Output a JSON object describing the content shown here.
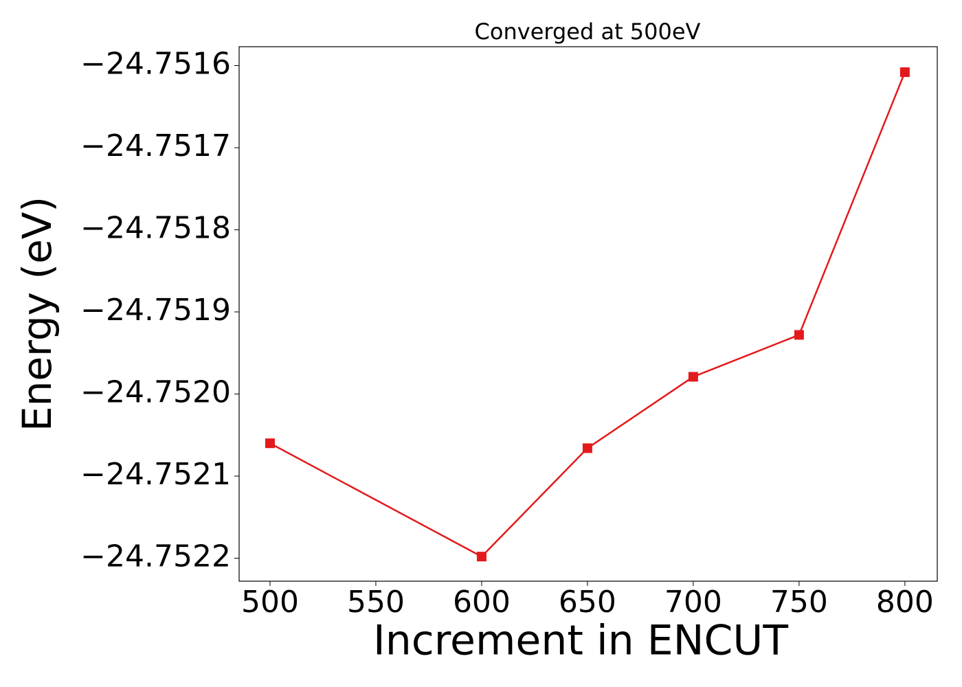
{
  "chart_data": {
    "type": "line",
    "title": "Converged at 500eV",
    "x_label": "Increment in ENCUT",
    "y_label": "Energy (eV)",
    "x": [
      500,
      600,
      650,
      700,
      750,
      800
    ],
    "series": [
      {
        "color": "#e31a1c",
        "values": [
          -24.75206,
          -24.752198,
          -24.752066,
          -24.751979,
          -24.751928,
          -24.751608
        ]
      }
    ],
    "xlim": [
      485.4,
      815.3
    ],
    "xticks": [
      500,
      550,
      600,
      650,
      700,
      750,
      800
    ],
    "ylim": [
      -24.752228,
      -24.751577
    ],
    "yticks": [
      {
        "value": -24.7522,
        "label": "−24.7522"
      },
      {
        "value": -24.7521,
        "label": "−24.7521"
      },
      {
        "value": -24.752,
        "label": "−24.7520"
      },
      {
        "value": -24.7519,
        "label": "−24.7519"
      },
      {
        "value": -24.7518,
        "label": "−24.7518"
      },
      {
        "value": -24.7517,
        "label": "−24.7517"
      },
      {
        "value": -24.7516,
        "label": "−24.7516"
      }
    ],
    "grid": false
  }
}
